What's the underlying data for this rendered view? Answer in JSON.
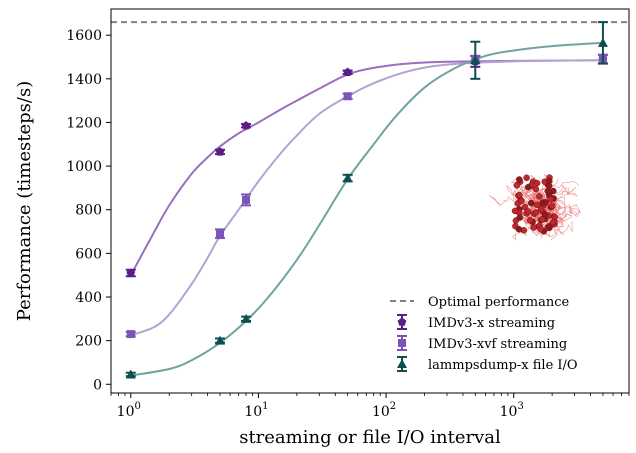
{
  "chart_data": {
    "type": "scatter",
    "xlabel": "streaming or file I/O interval",
    "ylabel": "Performance (timesteps/s)",
    "xscale": "log",
    "xlim": [
      0.7,
      8000
    ],
    "ylim": [
      -40,
      1720
    ],
    "y_ticks": [
      0,
      200,
      400,
      600,
      800,
      1000,
      1200,
      1400,
      1600
    ],
    "x_ticks": [
      {
        "value": 1,
        "base": "10",
        "exp": "0"
      },
      {
        "value": 10,
        "base": "10",
        "exp": "1"
      },
      {
        "value": 100,
        "base": "10",
        "exp": "2"
      },
      {
        "value": 1000,
        "base": "10",
        "exp": "3"
      }
    ],
    "grid": false,
    "legend_position": "bottom-right",
    "reference_line": {
      "name": "Optimal performance",
      "y": 1660,
      "color": "#808080"
    },
    "series": [
      {
        "name": "IMDv3-x streaming",
        "color": "#5b1e87",
        "fit_color": "#9a6fbd",
        "marker": "pentagon",
        "points": [
          {
            "x": 1,
            "y": 510,
            "err": 15
          },
          {
            "x": 5,
            "y": 1065,
            "err": 10
          },
          {
            "x": 8,
            "y": 1185,
            "err": 8
          },
          {
            "x": 50,
            "y": 1430,
            "err": 8
          },
          {
            "x": 500,
            "y": 1480,
            "err": 25
          },
          {
            "x": 5000,
            "y": 1490,
            "err": 20
          }
        ],
        "fit": {
          "x": [
            1,
            1.5,
            2,
            3,
            4,
            5,
            7,
            10,
            15,
            20,
            30,
            50,
            80,
            150,
            300,
            1000,
            5000
          ],
          "y": [
            500,
            690,
            820,
            965,
            1040,
            1090,
            1150,
            1200,
            1260,
            1300,
            1355,
            1420,
            1450,
            1470,
            1478,
            1482,
            1485
          ]
        }
      },
      {
        "name": "IMDv3-xvf streaming",
        "color": "#7b54b8",
        "fit_color": "#b5a2d4",
        "marker": "square",
        "points": [
          {
            "x": 1,
            "y": 230,
            "err": 10
          },
          {
            "x": 5,
            "y": 690,
            "err": 20
          },
          {
            "x": 8,
            "y": 845,
            "err": 25
          },
          {
            "x": 50,
            "y": 1320,
            "err": 12
          },
          {
            "x": 500,
            "y": 1490,
            "err": 15
          },
          {
            "x": 5000,
            "y": 1490,
            "err": 20
          }
        ],
        "fit": {
          "x": [
            1,
            1.5,
            2,
            3,
            4,
            5,
            7,
            10,
            15,
            20,
            30,
            50,
            80,
            150,
            300,
            1000,
            5000
          ],
          "y": [
            225,
            260,
            320,
            460,
            580,
            680,
            800,
            930,
            1060,
            1140,
            1240,
            1320,
            1380,
            1435,
            1465,
            1480,
            1485
          ]
        }
      },
      {
        "name": "lammpsdump-x file I/O",
        "color": "#0d4f4f",
        "fit_color": "#6fa3a0",
        "marker": "triangle",
        "points": [
          {
            "x": 1,
            "y": 45,
            "err": 8
          },
          {
            "x": 5,
            "y": 200,
            "err": 10
          },
          {
            "x": 8,
            "y": 300,
            "err": 10
          },
          {
            "x": 50,
            "y": 945,
            "err": 15
          },
          {
            "x": 500,
            "y": 1485,
            "err": 85
          },
          {
            "x": 5000,
            "y": 1565,
            "err": 95
          }
        ],
        "fit": {
          "x": [
            1,
            2,
            3,
            5,
            8,
            12,
            20,
            30,
            50,
            80,
            120,
            200,
            350,
            600,
            1000,
            2000,
            5000
          ],
          "y": [
            40,
            70,
            110,
            190,
            290,
            400,
            570,
            730,
            940,
            1100,
            1230,
            1360,
            1450,
            1505,
            1530,
            1550,
            1565
          ]
        }
      }
    ]
  }
}
